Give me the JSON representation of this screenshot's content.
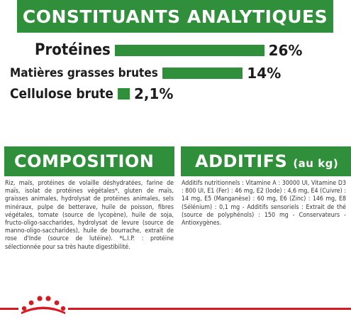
{
  "header_analytics": "CONSTITUANTS ANALYTIQUES",
  "nutrients": [
    {
      "label": "Protéines",
      "value": "26%",
      "percent": 26
    },
    {
      "label": "Matières grasses brutes",
      "value": "14%",
      "percent": 14
    },
    {
      "label": "Cellulose brute",
      "value": "2,1%",
      "percent": 2.1
    }
  ],
  "composition": {
    "title": "COMPOSITION",
    "text": "Riz, maïs, protéines de volaille déshydratées, farine de maïs, isolat de protéines végétales*, gluten de maïs, graisses animales, hydrolysat de protéines animales, sels minéraux, pulpe de betterave, huile de poisson, fibres végétales, tomate (source de lycopène), huile de soja, fructo-oligo-saccharides, hydrolysat de levure (source de manno-oligo-saccharides), huile de bourrache, extrait de rose d'Inde (source de lutéine). *L.I.P. : protéine sélectionnée pour sa très haute digestibilité."
  },
  "additives": {
    "title": "ADDITIFS",
    "unit": "(au kg)",
    "text": "Additifs nutritionnels : Vitamine A : 30000 UI, Vitamine D3 : 800 UI, E1 (Fer) : 46 mg, E2 (Iode) : 4,6 mg, E4 (Cuivre) : 14 mg, E5 (Manganèse) : 60 mg, E6 (Zinc) : 146 mg, E8 (Sélénium) : 0,1 mg - Additifs sensoriels : Extrait de thé (source de polyphénols) : 150 mg - Conservateurs - Antioxygènes."
  },
  "colors": {
    "accent_green": "#2f8f3a",
    "brand_red": "#d71a21"
  },
  "logo_icon": "royal-canin-crown-icon"
}
